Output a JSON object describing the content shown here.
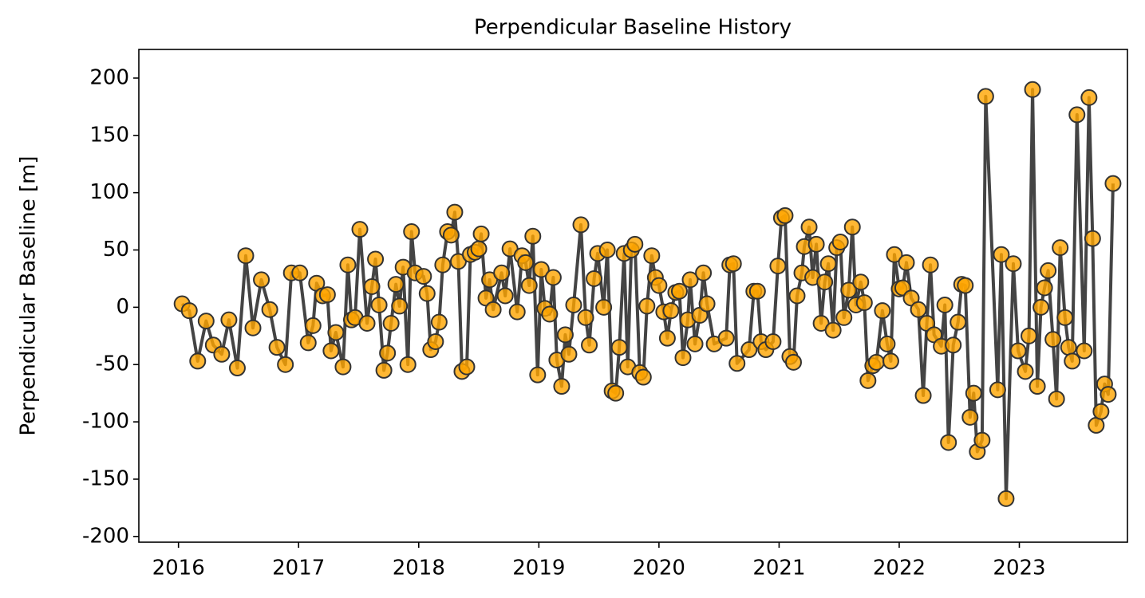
{
  "chart_data": {
    "type": "line",
    "title": "Perpendicular Baseline History",
    "ylabel": "Perpendicular Baseline [m]",
    "x": [
      2016.03,
      2016.09,
      2016.16,
      2016.23,
      2016.29,
      2016.36,
      2016.42,
      2016.49,
      2016.56,
      2016.62,
      2016.69,
      2016.76,
      2016.82,
      2016.89,
      2016.94,
      2017.01,
      2017.08,
      2017.12,
      2017.15,
      2017.2,
      2017.24,
      2017.27,
      2017.31,
      2017.37,
      2017.41,
      2017.44,
      2017.47,
      2017.51,
      2017.57,
      2017.61,
      2017.64,
      2017.67,
      2017.71,
      2017.74,
      2017.77,
      2017.81,
      2017.84,
      2017.87,
      2017.91,
      2017.94,
      2017.97,
      2018.04,
      2018.07,
      2018.1,
      2018.14,
      2018.17,
      2018.2,
      2018.24,
      2018.27,
      2018.3,
      2018.33,
      2018.36,
      2018.4,
      2018.43,
      2018.47,
      2018.5,
      2018.52,
      2018.56,
      2018.59,
      2018.62,
      2018.69,
      2018.72,
      2018.76,
      2018.82,
      2018.86,
      2018.89,
      2018.92,
      2018.95,
      2018.99,
      2019.02,
      2019.05,
      2019.09,
      2019.12,
      2019.15,
      2019.19,
      2019.22,
      2019.25,
      2019.29,
      2019.35,
      2019.39,
      2019.42,
      2019.46,
      2019.49,
      2019.54,
      2019.57,
      2019.61,
      2019.64,
      2019.67,
      2019.71,
      2019.74,
      2019.77,
      2019.8,
      2019.84,
      2019.87,
      2019.9,
      2019.94,
      2019.97,
      2020.0,
      2020.04,
      2020.07,
      2020.1,
      2020.14,
      2020.17,
      2020.2,
      2020.24,
      2020.26,
      2020.3,
      2020.34,
      2020.37,
      2020.4,
      2020.46,
      2020.56,
      2020.59,
      2020.62,
      2020.65,
      2020.75,
      2020.79,
      2020.82,
      2020.85,
      2020.89,
      2020.95,
      2020.99,
      2021.02,
      2021.05,
      2021.09,
      2021.12,
      2021.15,
      2021.19,
      2021.21,
      2021.25,
      2021.28,
      2021.31,
      2021.35,
      2021.38,
      2021.41,
      2021.45,
      2021.48,
      2021.51,
      2021.54,
      2021.58,
      2021.61,
      2021.64,
      2021.68,
      2021.71,
      2021.74,
      2021.78,
      2021.81,
      2021.86,
      2021.9,
      2021.93,
      2021.96,
      2022.0,
      2022.03,
      2022.06,
      2022.1,
      2022.16,
      2022.2,
      2022.23,
      2022.26,
      2022.29,
      2022.35,
      2022.38,
      2022.41,
      2022.45,
      2022.49,
      2022.52,
      2022.55,
      2022.59,
      2022.62,
      2022.65,
      2022.69,
      2022.72,
      2022.82,
      2022.85,
      2022.89,
      2022.95,
      2022.99,
      2023.05,
      2023.08,
      2023.11,
      2023.15,
      2023.18,
      2023.21,
      2023.24,
      2023.28,
      2023.31,
      2023.34,
      2023.38,
      2023.41,
      2023.44,
      2023.48,
      2023.54,
      2023.58,
      2023.61,
      2023.64,
      2023.68,
      2023.71,
      2023.74,
      2023.78
    ],
    "values": [
      3,
      -3,
      -47,
      -12,
      -33,
      -41,
      -11,
      -53,
      45,
      -18,
      24,
      -2,
      -35,
      -50,
      30,
      30,
      -31,
      -16,
      21,
      10,
      11,
      -38,
      -22,
      -52,
      37,
      -11,
      -9,
      68,
      -14,
      18,
      42,
      2,
      -55,
      -40,
      -14,
      20,
      1,
      35,
      -50,
      66,
      30,
      27,
      12,
      -37,
      -30,
      -13,
      37,
      66,
      63,
      83,
      40,
      -56,
      -52,
      46,
      48,
      51,
      64,
      8,
      24,
      -2,
      30,
      10,
      51,
      -4,
      45,
      39,
      19,
      62,
      -59,
      33,
      -1,
      -6,
      26,
      -46,
      -69,
      -24,
      -41,
      2,
      72,
      -9,
      -33,
      25,
      47,
      0,
      50,
      -73,
      -75,
      -35,
      47,
      -52,
      50,
      55,
      -57,
      -61,
      1,
      45,
      26,
      19,
      -4,
      -27,
      -3,
      13,
      14,
      -44,
      -11,
      24,
      -32,
      -7,
      30,
      3,
      -32,
      -27,
      37,
      38,
      -49,
      -37,
      14,
      14,
      -30,
      -37,
      -30,
      36,
      78,
      80,
      -43,
      -48,
      10,
      30,
      53,
      70,
      26,
      55,
      -14,
      22,
      38,
      -20,
      52,
      57,
      -9,
      15,
      70,
      2,
      22,
      4,
      -64,
      -51,
      -48,
      -3,
      -32,
      -47,
      46,
      16,
      17,
      39,
      8,
      -2,
      -77,
      -14,
      37,
      -24,
      -34,
      2,
      -118,
      -33,
      -13,
      20,
      19,
      -96,
      -75,
      -126,
      -116,
      184,
      -72,
      46,
      -167,
      38,
      -38,
      -56,
      -25,
      190,
      -69,
      0,
      17,
      32,
      -28,
      -80,
      52,
      -9,
      -35,
      -47,
      168,
      -38,
      183,
      60,
      -103,
      -91,
      -67,
      -76,
      108
    ],
    "line_color": "#444444",
    "marker_color": "#ffa500",
    "marker_edge_color": "#333333",
    "xlim": [
      2015.67,
      2023.9
    ],
    "xticks": [
      2016,
      2017,
      2018,
      2019,
      2020,
      2021,
      2022,
      2023
    ],
    "ylim": [
      -205,
      225
    ],
    "yticks": [
      -200,
      -150,
      -100,
      -50,
      0,
      50,
      100,
      150,
      200
    ],
    "grid": false
  }
}
